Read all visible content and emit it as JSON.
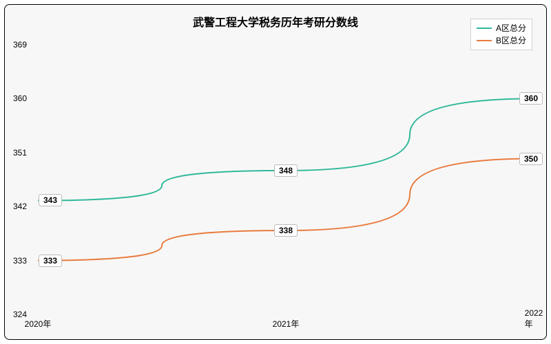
{
  "chart": {
    "type": "line",
    "title": "武警工程大学税务历年考研分数线",
    "title_fontsize": 16,
    "background_color": "#f8f7f7",
    "border_color": "#000000",
    "x_categories": [
      "2020年",
      "2021年",
      "2022年"
    ],
    "ylim": [
      324,
      369
    ],
    "yticks": [
      324,
      333,
      342,
      351,
      360,
      369
    ],
    "ytick_step": 9,
    "grid": false,
    "label_fontsize": 12,
    "line_width": 2,
    "label_box_bg": "#ffffff",
    "label_box_border": "#bbbbbb",
    "series": [
      {
        "name": "A区总分",
        "color": "#2fb89a",
        "values": [
          343,
          348,
          360
        ]
      },
      {
        "name": "B区总分",
        "color": "#e87b3e",
        "values": [
          333,
          338,
          350
        ]
      }
    ],
    "legend": {
      "position": "top-right",
      "bg": "#ffffff",
      "border": "#d0d0d0"
    }
  }
}
